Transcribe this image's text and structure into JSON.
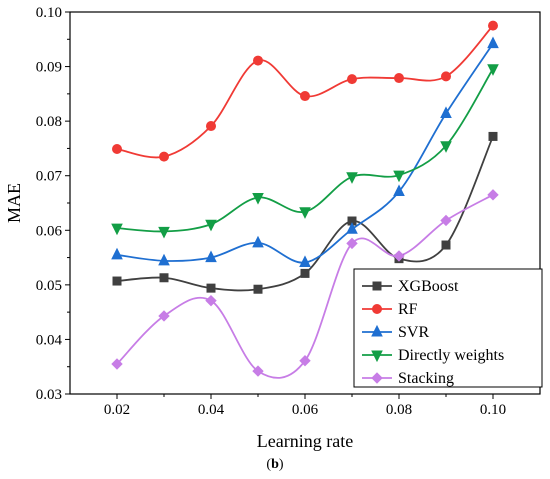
{
  "chart_data": {
    "type": "line",
    "xlabel": "Learning rate",
    "ylabel": "MAE",
    "caption_open": "(",
    "caption_letter": "b",
    "caption_close": ")",
    "x": [
      0.02,
      0.03,
      0.04,
      0.05,
      0.06,
      0.07,
      0.08,
      0.09,
      0.1
    ],
    "x_tick_labels": [
      "0.02",
      "0.04",
      "0.06",
      "0.08",
      "0.10"
    ],
    "y_tick_labels": [
      "0.03",
      "0.04",
      "0.05",
      "0.06",
      "0.07",
      "0.08",
      "0.09",
      "0.10"
    ],
    "xlim": [
      0.01,
      0.11
    ],
    "ylim": [
      0.03,
      0.1
    ],
    "grid": false,
    "smooth": true,
    "legend_position": "bottom-right",
    "series": [
      {
        "name": "XGBoost",
        "color": "#404040",
        "marker": "square",
        "values": [
          0.0507,
          0.0513,
          0.0494,
          0.0492,
          0.0521,
          0.0617,
          0.0548,
          0.0573,
          0.0772
        ]
      },
      {
        "name": "RF",
        "color": "#f03a35",
        "marker": "circle",
        "values": [
          0.0749,
          0.0735,
          0.0791,
          0.0911,
          0.0846,
          0.0877,
          0.0879,
          0.0882,
          0.0975
        ]
      },
      {
        "name": "SVR",
        "color": "#1f6fd1",
        "marker": "triangle-up",
        "values": [
          0.0555,
          0.0544,
          0.055,
          0.0577,
          0.0541,
          0.0602,
          0.0671,
          0.0814,
          0.0942
        ]
      },
      {
        "name": "Directly weights",
        "color": "#139e46",
        "marker": "triangle-down",
        "values": [
          0.0604,
          0.0598,
          0.0611,
          0.066,
          0.0634,
          0.0698,
          0.0701,
          0.0755,
          0.0896
        ]
      },
      {
        "name": "Stacking",
        "color": "#c77de6",
        "marker": "diamond",
        "values": [
          0.0355,
          0.0443,
          0.0471,
          0.0342,
          0.0361,
          0.0576,
          0.0553,
          0.0618,
          0.0665
        ]
      }
    ]
  }
}
